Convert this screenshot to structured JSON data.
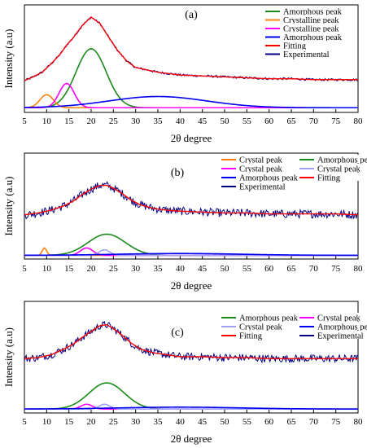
{
  "chart_data": [
    {
      "type": "line",
      "panel_label": "(a)",
      "xlabel": "2θ degree",
      "ylabel": "Intensity (a.u)",
      "xlim": [
        5,
        80
      ],
      "xticks": [
        5,
        10,
        15,
        20,
        25,
        30,
        35,
        40,
        45,
        50,
        55,
        60,
        65,
        70,
        75,
        80
      ],
      "ylim": [
        0,
        1.15
      ],
      "legend_position": "top-right",
      "legend": [
        {
          "label": "Amorphous peak",
          "color": "#1a8a1a"
        },
        {
          "label": "Crystalline peak",
          "color": "#ff7f0e"
        },
        {
          "label": "Crystalline peak",
          "color": "#ff00ff"
        },
        {
          "label": "Amorphous peak",
          "color": "#0000ee"
        },
        {
          "label": "Fitting",
          "color": "#ff0000"
        },
        {
          "label": "Experimental",
          "color": "#000080"
        }
      ],
      "baseline": 0.05,
      "components": [
        {
          "name": "Amorphous peak",
          "color": "#1a8a1a",
          "center": 20.0,
          "height": 0.63,
          "width": 3.4
        },
        {
          "name": "Crystalline peak",
          "color": "#ff7f0e",
          "center": 10.0,
          "height": 0.14,
          "width": 1.5
        },
        {
          "name": "Crystalline peak",
          "color": "#ff00ff",
          "center": 14.5,
          "height": 0.26,
          "width": 1.7
        },
        {
          "name": "Amorphous peak",
          "color": "#0000ee",
          "center": 35.0,
          "height": 0.12,
          "width": 11.0
        }
      ],
      "experimental": {
        "color": "#000080",
        "x": [
          5,
          7,
          9,
          11,
          13,
          14.5,
          16,
          18,
          20,
          22,
          24,
          26,
          28,
          30,
          35,
          40,
          45,
          50,
          55,
          60,
          65,
          70,
          75,
          80
        ],
        "y": [
          0.34,
          0.38,
          0.43,
          0.52,
          0.62,
          0.72,
          0.8,
          0.93,
          1.02,
          0.95,
          0.8,
          0.66,
          0.55,
          0.48,
          0.43,
          0.4,
          0.39,
          0.38,
          0.37,
          0.36,
          0.36,
          0.35,
          0.35,
          0.35
        ]
      },
      "fitting": {
        "color": "#ff0000"
      }
    },
    {
      "type": "line",
      "panel_label": "(b)",
      "xlabel": "2θ degree",
      "ylabel": "Intensity (a.u)",
      "xlim": [
        5,
        80
      ],
      "xticks": [
        5,
        10,
        15,
        20,
        25,
        30,
        35,
        40,
        45,
        50,
        55,
        60,
        65,
        70,
        75,
        80
      ],
      "ylim": [
        0,
        1.15
      ],
      "legend_position": "top-right",
      "legend": [
        {
          "label": "Crystal peak",
          "color": "#ff7f0e"
        },
        {
          "label": "Amorphous peak",
          "color": "#1a8a1a"
        },
        {
          "label": "Crystal peak",
          "color": "#ff00ff"
        },
        {
          "label": "Crystal peak",
          "color": "#a0a0ff"
        },
        {
          "label": "Amorphous peak",
          "color": "#0000ee"
        },
        {
          "label": "Fitting",
          "color": "#ff0000"
        },
        {
          "label": "Experimental",
          "color": "#000080"
        }
      ],
      "baseline": 0.04,
      "components": [
        {
          "name": "Crystal peak",
          "color": "#ff7f0e",
          "center": 9.5,
          "height": 0.08,
          "width": 0.5
        },
        {
          "name": "Amorphous peak",
          "color": "#1a8a1a",
          "center": 23.5,
          "height": 0.23,
          "width": 4.2
        },
        {
          "name": "Crystal peak",
          "color": "#ff00ff",
          "center": 19.0,
          "height": 0.08,
          "width": 1.4
        },
        {
          "name": "Crystal peak",
          "color": "#a0a0ff",
          "center": 23.0,
          "height": 0.06,
          "width": 1.2
        },
        {
          "name": "Amorphous peak",
          "color": "#0000ee",
          "center": 40.0,
          "height": 0.02,
          "width": 14.0
        }
      ],
      "experimental": {
        "color": "#000080",
        "x": [
          5,
          8,
          11,
          14,
          16,
          18,
          20,
          22,
          23.5,
          25,
          27,
          29,
          31,
          34,
          37,
          40,
          45,
          50,
          55,
          60,
          65,
          70,
          75,
          80
        ],
        "y": [
          0.48,
          0.5,
          0.53,
          0.58,
          0.63,
          0.7,
          0.76,
          0.8,
          0.8,
          0.77,
          0.71,
          0.64,
          0.59,
          0.55,
          0.53,
          0.52,
          0.51,
          0.5,
          0.5,
          0.49,
          0.49,
          0.49,
          0.49,
          0.48
        ]
      },
      "fitting": {
        "color": "#ff0000"
      }
    },
    {
      "type": "line",
      "panel_label": "(c)",
      "xlabel": "2θ degree",
      "ylabel": "Intensity (a.u)",
      "xlim": [
        5,
        80
      ],
      "xticks": [
        5,
        10,
        15,
        20,
        25,
        30,
        35,
        40,
        45,
        50,
        55,
        60,
        65,
        70,
        75,
        80
      ],
      "ylim": [
        0,
        1.15
      ],
      "legend_position": "top-right",
      "legend": [
        {
          "label": "Amorphous peak",
          "color": "#1a8a1a"
        },
        {
          "label": "Crystal peak",
          "color": "#ff00ff"
        },
        {
          "label": "Crystal peak",
          "color": "#a0a0ff"
        },
        {
          "label": "Amorphous peak",
          "color": "#0000ee"
        },
        {
          "label": "Fitting",
          "color": "#ff0000"
        },
        {
          "label": "Experimental",
          "color": "#000080"
        }
      ],
      "baseline": 0.04,
      "components": [
        {
          "name": "Amorphous peak",
          "color": "#1a8a1a",
          "center": 23.5,
          "height": 0.27,
          "width": 4.0
        },
        {
          "name": "Crystal peak",
          "color": "#ff00ff",
          "center": 19.0,
          "height": 0.05,
          "width": 1.3
        },
        {
          "name": "Crystal peak",
          "color": "#a0a0ff",
          "center": 23.0,
          "height": 0.05,
          "width": 1.2
        },
        {
          "name": "Amorphous peak",
          "color": "#0000ee",
          "center": 40.0,
          "height": 0.02,
          "width": 14.0
        }
      ],
      "experimental": {
        "color": "#000080",
        "x": [
          5,
          8,
          11,
          14,
          16,
          18,
          20,
          22,
          23.5,
          25,
          27,
          29,
          31,
          34,
          37,
          40,
          45,
          50,
          55,
          60,
          65,
          70,
          75,
          80
        ],
        "y": [
          0.56,
          0.57,
          0.6,
          0.66,
          0.71,
          0.78,
          0.84,
          0.9,
          0.91,
          0.87,
          0.8,
          0.72,
          0.66,
          0.62,
          0.6,
          0.58,
          0.58,
          0.57,
          0.57,
          0.56,
          0.56,
          0.56,
          0.56,
          0.56
        ]
      },
      "fitting": {
        "color": "#ff0000"
      }
    }
  ]
}
